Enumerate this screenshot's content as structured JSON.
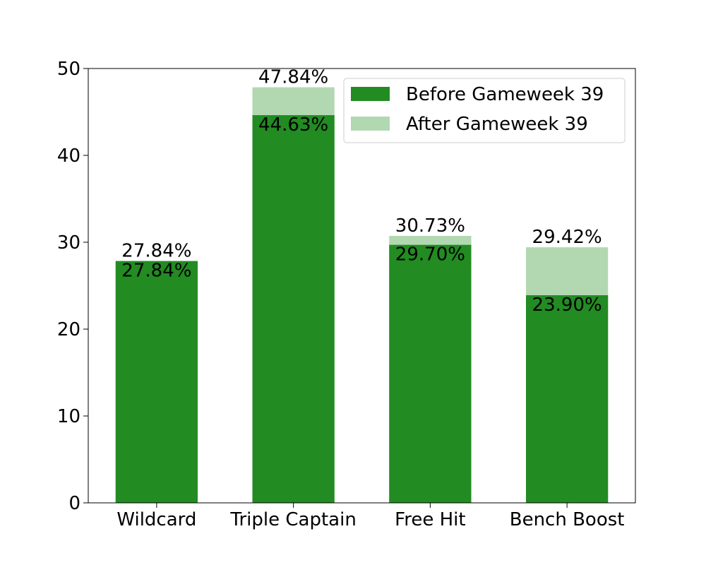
{
  "chart_data": {
    "type": "bar",
    "stacked": "overlay",
    "categories": [
      "Wildcard",
      "Triple Captain",
      "Free Hit",
      "Bench Boost"
    ],
    "series": [
      {
        "name": "Before Gameweek 39",
        "values": [
          27.84,
          44.63,
          29.7,
          23.9
        ],
        "color": "#228b22",
        "labels": [
          "27.84%",
          "44.63%",
          "29.70%",
          "23.90%"
        ]
      },
      {
        "name": "After Gameweek 39",
        "values": [
          27.84,
          47.84,
          30.73,
          29.42
        ],
        "color": "#b2d8b2",
        "labels": [
          "27.84%",
          "47.84%",
          "30.73%",
          "29.42%"
        ]
      }
    ],
    "ylim": [
      0,
      50
    ],
    "yticks": [
      0,
      10,
      20,
      30,
      40,
      50
    ],
    "ytick_labels": [
      "0",
      "10",
      "20",
      "30",
      "40",
      "50"
    ],
    "xlabel": "",
    "ylabel": "",
    "title": "",
    "grid": false,
    "legend_position": "top-right"
  }
}
